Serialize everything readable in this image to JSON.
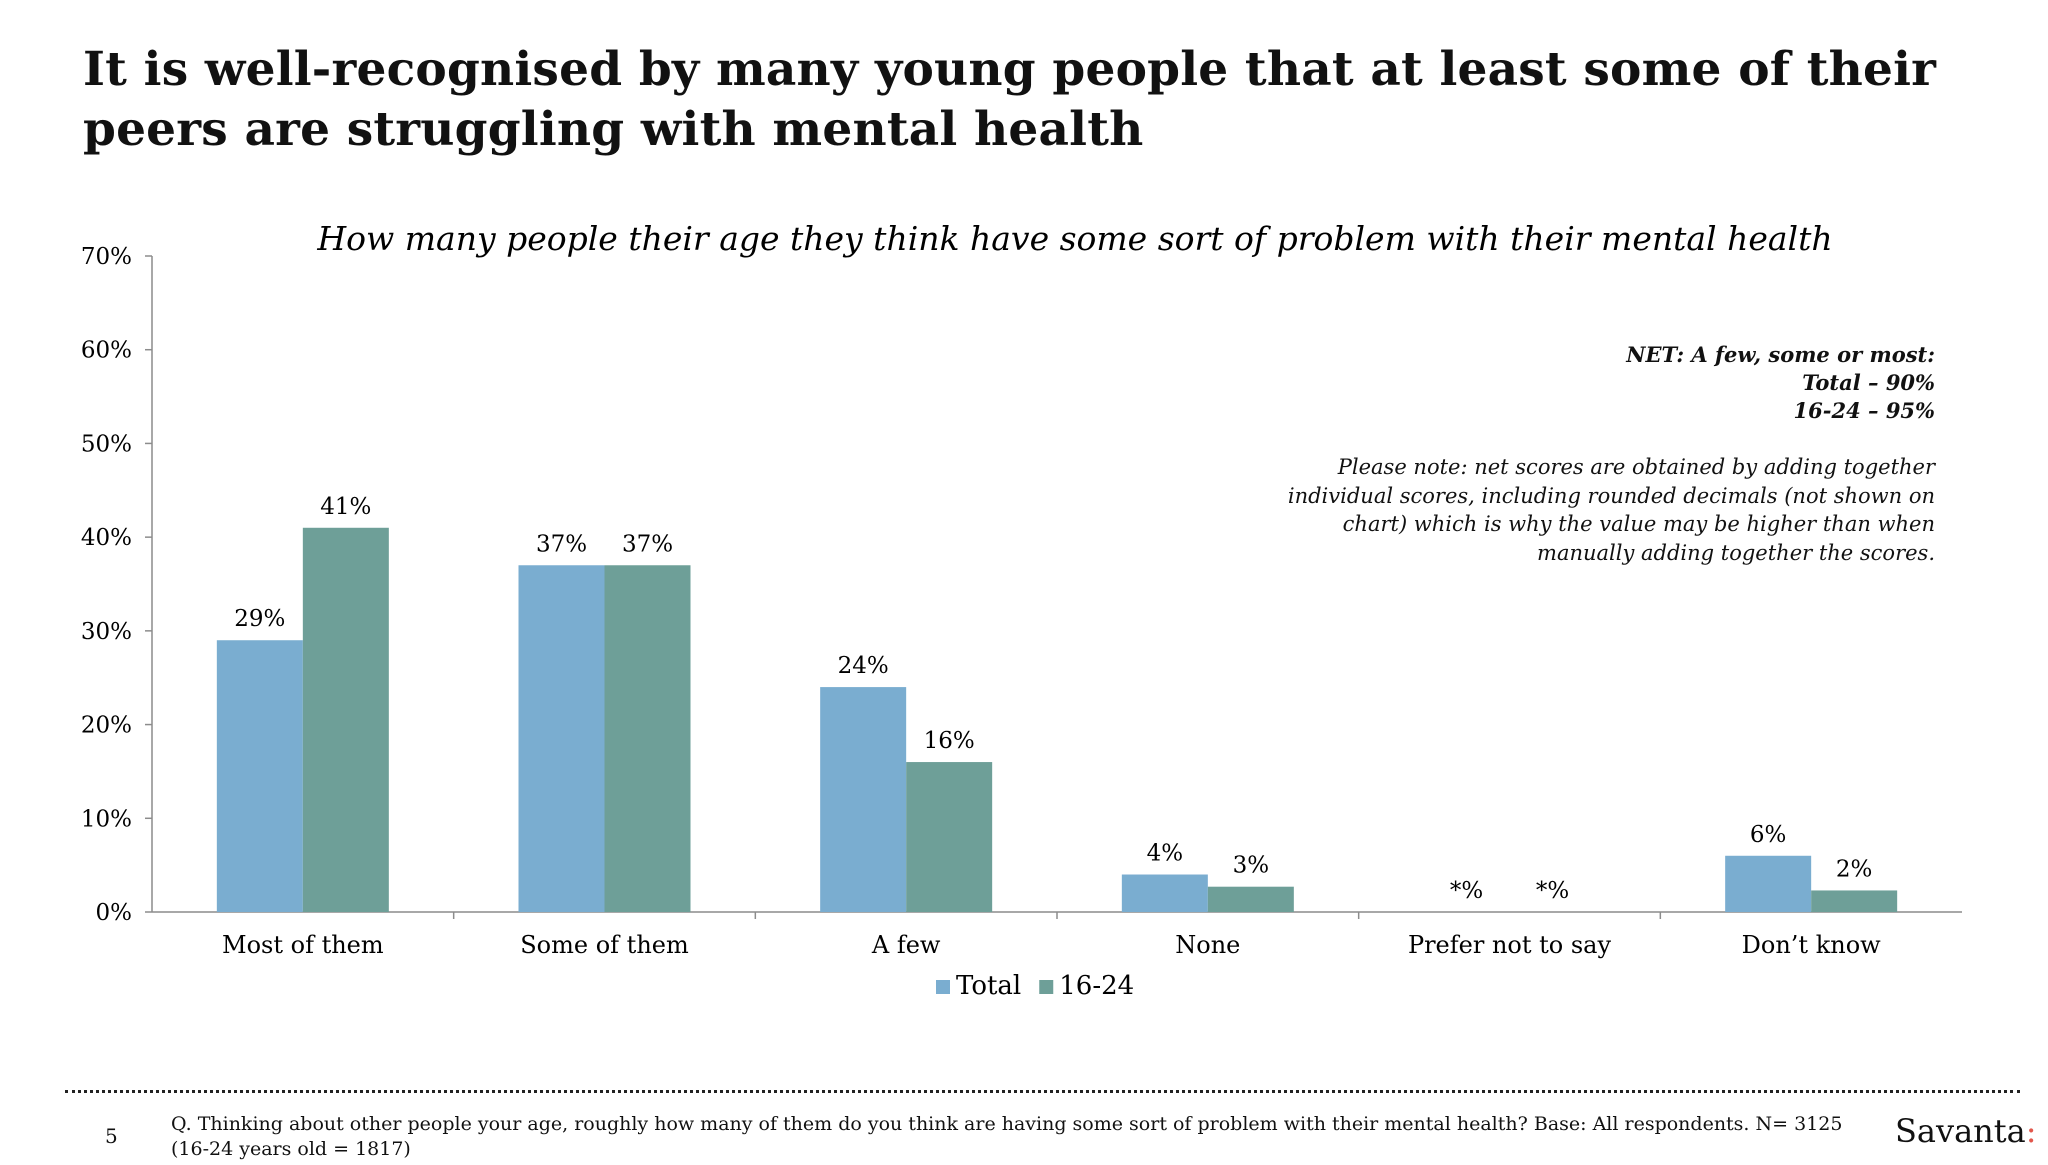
{
  "headline": {
    "line1": "It is well-recognised by many young people that at least some of their",
    "line2": "peers are struggling with mental health"
  },
  "chart_data": {
    "type": "bar",
    "title": "How many people their age they think have some sort of problem with their mental health",
    "categories": [
      "Most of them",
      "Some of them",
      "A few",
      "None",
      "Prefer not to say",
      "Don’t know"
    ],
    "series": [
      {
        "name": "Total",
        "color": "#7aadd0",
        "values": [
          29,
          37,
          24,
          4,
          0,
          6
        ],
        "labels": [
          "29%",
          "37%",
          "24%",
          "4%",
          "*%",
          "6%"
        ]
      },
      {
        "name": "16-24",
        "color": "#6e9f98",
        "values": [
          41,
          37,
          16,
          2.7,
          0,
          2.3
        ],
        "labels": [
          "41%",
          "37%",
          "16%",
          "3%",
          "*%",
          "2%"
        ]
      }
    ],
    "ylim": [
      0,
      70
    ],
    "yticks": [
      0,
      10,
      20,
      30,
      40,
      50,
      60,
      70
    ],
    "ytick_labels": [
      "0%",
      "10%",
      "20%",
      "30%",
      "40%",
      "50%",
      "60%",
      "70%"
    ],
    "xlabel": "",
    "ylabel": "",
    "grid": false,
    "legend_position": "bottom"
  },
  "notes": {
    "net_line1": "NET: A few, some or most:",
    "net_line2": "Total – 90%",
    "net_line3": "16-24 – 95%",
    "please_note": "Please note: net scores are obtained by adding together individual scores, including rounded decimals (not shown on chart) which is why the value may be higher than when manually adding together the scores."
  },
  "footer": {
    "page_number": "5",
    "question": "Q. Thinking about other people your age, roughly how many of them do you think are having some sort of problem with their mental health? Base: All respondents. N= 3125 (16-24 years old = 1817)",
    "brand": "Savanta",
    "brand_colon": ":",
    "brand_colon_color": "#e2574c"
  }
}
